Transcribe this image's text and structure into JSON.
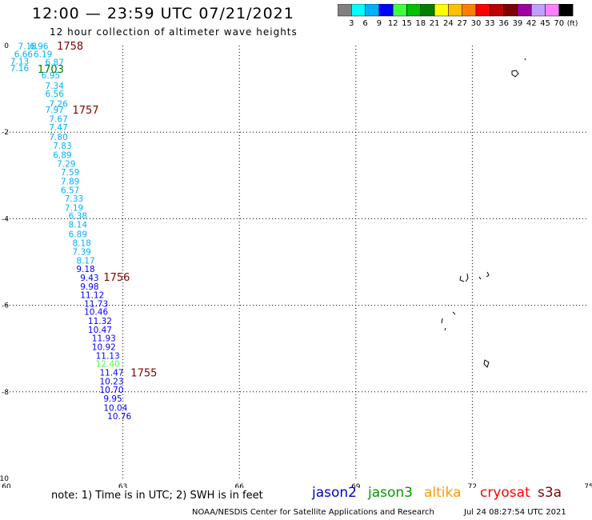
{
  "header": {
    "title": "12:00 — 23:59 UTC 07/21/2021",
    "subtitle": "12 hour collection of altimeter wave heights"
  },
  "colorbar": {
    "labels": [
      "3",
      "6",
      "9",
      "12",
      "15",
      "18",
      "21",
      "24",
      "27",
      "30",
      "33",
      "36",
      "39",
      "42",
      "45",
      "70"
    ],
    "unit": "(ft)",
    "colors": [
      "#808080",
      "#00ffff",
      "#00b0ff",
      "#0000ff",
      "#40ff40",
      "#00c000",
      "#008000",
      "#ffff00",
      "#ffc000",
      "#ff8000",
      "#ff0000",
      "#c00000",
      "#800000",
      "#a000a0",
      "#c0a0ff",
      "#ff80ff",
      "#000000"
    ]
  },
  "legend": {
    "note": "note:  1) Time is in UTC;  2) SWH is in feet",
    "satellites": [
      {
        "name": "jason2",
        "color": "#0000cc"
      },
      {
        "name": "jason3",
        "color": "#009900"
      },
      {
        "name": "altika",
        "color": "#ff9900"
      },
      {
        "name": "cryosat",
        "color": "#ff0000"
      },
      {
        "name": "s3a",
        "color": "#800000"
      }
    ]
  },
  "footer": {
    "credit": "NOAA/NESDIS Center for Satellite Applications and Research",
    "timestamp": "Jul 24 08:27:54 UTC 2021"
  },
  "chart_data": {
    "type": "scatter",
    "title": "12:00 — 23:59 UTC 07/21/2021",
    "subtitle": "12 hour collection of altimeter wave heights",
    "xlim": [
      60,
      75
    ],
    "ylim": [
      -10,
      0
    ],
    "x_ticks": [
      60,
      63,
      66,
      69,
      72,
      75
    ],
    "y_ticks": [
      0,
      -2,
      -4,
      -6,
      -8,
      -10
    ],
    "grid": true,
    "points": [
      {
        "x": 60.3,
        "y": -0.01,
        "v": "7.18",
        "c": "#00b0ff"
      },
      {
        "x": 60.6,
        "y": -0.01,
        "v": "6.96",
        "c": "#00b0ff"
      },
      {
        "x": 60.2,
        "y": -0.19,
        "v": "6.66",
        "c": "#00b0ff"
      },
      {
        "x": 60.7,
        "y": -0.19,
        "v": "6.19",
        "c": "#00b0ff"
      },
      {
        "x": 60.1,
        "y": -0.36,
        "v": "7.13",
        "c": "#00b0ff"
      },
      {
        "x": 61.0,
        "y": -0.38,
        "v": "6.87",
        "c": "#00b0ff"
      },
      {
        "x": 60.1,
        "y": -0.52,
        "v": "7.16",
        "c": "#00b0ff"
      },
      {
        "x": 60.9,
        "y": -0.68,
        "v": "6.95",
        "c": "#00b0ff"
      },
      {
        "x": 61.0,
        "y": -0.92,
        "v": "7.34",
        "c": "#00b0ff"
      },
      {
        "x": 61.0,
        "y": -1.11,
        "v": "6.56",
        "c": "#00b0ff"
      },
      {
        "x": 61.1,
        "y": -1.34,
        "v": "7.26",
        "c": "#00b0ff"
      },
      {
        "x": 61.0,
        "y": -1.48,
        "v": "7.97",
        "c": "#00b0ff"
      },
      {
        "x": 61.1,
        "y": -1.69,
        "v": "7.67",
        "c": "#00b0ff"
      },
      {
        "x": 61.1,
        "y": -1.89,
        "v": "7.47",
        "c": "#00b0ff"
      },
      {
        "x": 61.1,
        "y": -2.11,
        "v": "7.80",
        "c": "#00b0ff"
      },
      {
        "x": 61.2,
        "y": -2.31,
        "v": "7.83",
        "c": "#00b0ff"
      },
      {
        "x": 61.2,
        "y": -2.52,
        "v": "6.89",
        "c": "#00b0ff"
      },
      {
        "x": 61.3,
        "y": -2.73,
        "v": "7.29",
        "c": "#00b0ff"
      },
      {
        "x": 61.4,
        "y": -2.92,
        "v": "7.59",
        "c": "#00b0ff"
      },
      {
        "x": 61.4,
        "y": -3.13,
        "v": "7.89",
        "c": "#00b0ff"
      },
      {
        "x": 61.4,
        "y": -3.34,
        "v": "6.57",
        "c": "#00b0ff"
      },
      {
        "x": 61.5,
        "y": -3.53,
        "v": "7.33",
        "c": "#00b0ff"
      },
      {
        "x": 61.5,
        "y": -3.74,
        "v": "7.19",
        "c": "#00b0ff"
      },
      {
        "x": 61.6,
        "y": -3.93,
        "v": "6.38",
        "c": "#00b0ff"
      },
      {
        "x": 61.6,
        "y": -4.13,
        "v": "8.14",
        "c": "#00b0ff"
      },
      {
        "x": 61.6,
        "y": -4.35,
        "v": "6.89",
        "c": "#00b0ff"
      },
      {
        "x": 61.7,
        "y": -4.56,
        "v": "8.18",
        "c": "#00b0ff"
      },
      {
        "x": 61.7,
        "y": -4.76,
        "v": "7.39",
        "c": "#00b0ff"
      },
      {
        "x": 61.8,
        "y": -4.96,
        "v": "8.17",
        "c": "#00b0ff"
      },
      {
        "x": 61.8,
        "y": -5.16,
        "v": "9.18",
        "c": "#0000ff"
      },
      {
        "x": 61.9,
        "y": -5.36,
        "v": "9.43",
        "c": "#0000ff"
      },
      {
        "x": 61.9,
        "y": -5.56,
        "v": "9.98",
        "c": "#0000ff"
      },
      {
        "x": 61.9,
        "y": -5.76,
        "v": "11.12",
        "c": "#0000ff"
      },
      {
        "x": 62.0,
        "y": -5.96,
        "v": "11.73",
        "c": "#0000ff"
      },
      {
        "x": 62.0,
        "y": -6.15,
        "v": "10.46",
        "c": "#0000ff"
      },
      {
        "x": 62.1,
        "y": -6.36,
        "v": "11.32",
        "c": "#0000ff"
      },
      {
        "x": 62.1,
        "y": -6.56,
        "v": "10.47",
        "c": "#0000ff"
      },
      {
        "x": 62.2,
        "y": -6.76,
        "v": "11.93",
        "c": "#0000ff"
      },
      {
        "x": 62.2,
        "y": -6.96,
        "v": "10.92",
        "c": "#0000ff"
      },
      {
        "x": 62.3,
        "y": -7.16,
        "v": "11.13",
        "c": "#0000ff"
      },
      {
        "x": 62.3,
        "y": -7.35,
        "v": "12.40",
        "c": "#40ff40"
      },
      {
        "x": 62.4,
        "y": -7.55,
        "v": "11.47",
        "c": "#0000ff"
      },
      {
        "x": 62.4,
        "y": -7.75,
        "v": "10.23",
        "c": "#0000ff"
      },
      {
        "x": 62.4,
        "y": -7.95,
        "v": "10.70",
        "c": "#0000ff"
      },
      {
        "x": 62.5,
        "y": -8.15,
        "v": "9.95",
        "c": "#0000ff"
      },
      {
        "x": 62.5,
        "y": -8.36,
        "v": "10.04",
        "c": "#0000ff"
      },
      {
        "x": 62.6,
        "y": -8.56,
        "v": "10.76",
        "c": "#0000ff"
      }
    ],
    "time_labels": [
      {
        "x": 61.3,
        "y": 0.0,
        "t": "1758",
        "c": "#800000"
      },
      {
        "x": 60.8,
        "y": -0.54,
        "t": "1703",
        "c": "#008000"
      },
      {
        "x": 61.7,
        "y": -1.48,
        "t": "1757",
        "c": "#800000"
      },
      {
        "x": 62.5,
        "y": -5.34,
        "t": "1756",
        "c": "#800000"
      },
      {
        "x": 63.2,
        "y": -7.55,
        "t": "1755",
        "c": "#800000"
      }
    ]
  }
}
